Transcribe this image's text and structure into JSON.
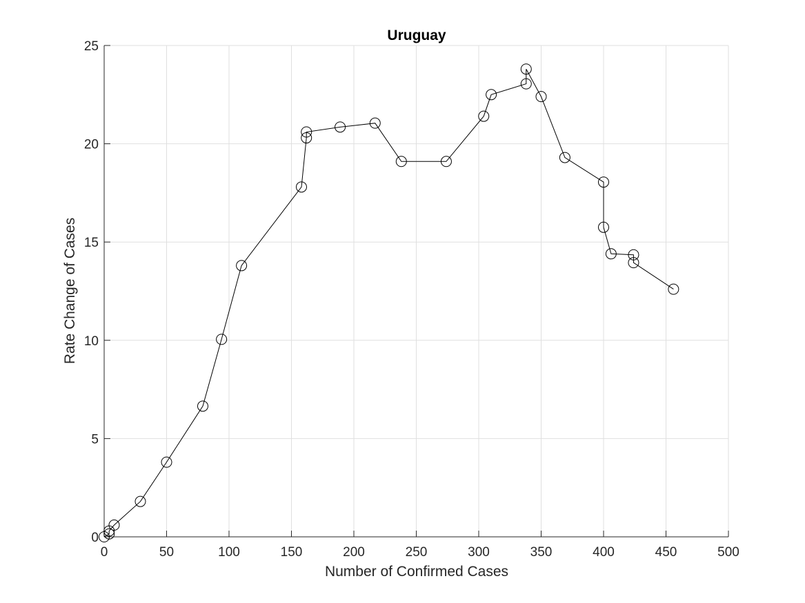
{
  "chart_data": {
    "type": "line",
    "title": "Uruguay",
    "xlabel": "Number of Confirmed Cases",
    "ylabel": "Rate Change of Cases",
    "xlim": [
      0,
      500
    ],
    "ylim": [
      0,
      25
    ],
    "xticks": [
      0,
      50,
      100,
      150,
      200,
      250,
      300,
      350,
      400,
      450,
      500
    ],
    "yticks": [
      0,
      5,
      10,
      15,
      20,
      25
    ],
    "grid": true,
    "marker": "open-circle",
    "line_color": "#000000",
    "series": [
      {
        "x": [
          0,
          4,
          4,
          8,
          29,
          50,
          79,
          94,
          110,
          158,
          162,
          162,
          189,
          217,
          238,
          274,
          304,
          310,
          338,
          338,
          350,
          369,
          400,
          400,
          406,
          424,
          424,
          456
        ],
        "y": [
          0.0,
          0.15,
          0.3,
          0.6,
          1.8,
          3.8,
          6.65,
          10.05,
          13.8,
          17.8,
          20.3,
          20.6,
          20.85,
          21.05,
          19.1,
          19.1,
          21.4,
          22.5,
          23.05,
          23.8,
          22.4,
          19.3,
          18.05,
          15.75,
          14.4,
          14.35,
          13.95,
          12.6
        ]
      }
    ]
  }
}
